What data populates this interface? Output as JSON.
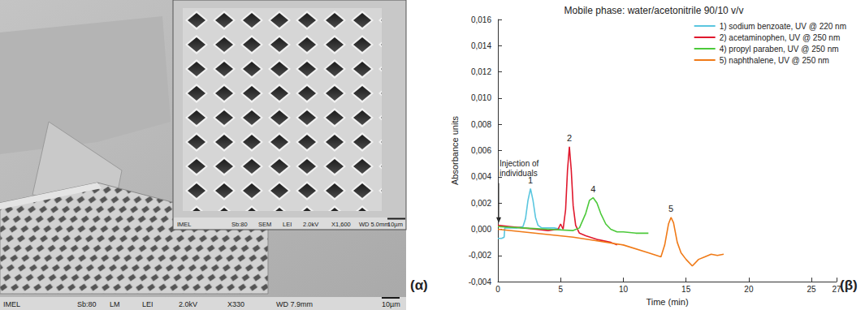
{
  "chart_data": {
    "type": "line",
    "title": "Mobile phase: water/acetonitrile 90/10 v/v",
    "x_label": "Time (min)",
    "y_label": "Absorbance units",
    "xlim": [
      0,
      27
    ],
    "xticks": [
      0,
      5,
      10,
      15,
      20,
      25
    ],
    "ylim": [
      -0.004,
      0.016
    ],
    "yticks": [
      {
        "value": -0.004,
        "label": "-0,004"
      },
      {
        "value": -0.002,
        "label": "-0,002"
      },
      {
        "value": 0,
        "label": "0,000"
      },
      {
        "value": 0.002,
        "label": "0,002"
      },
      {
        "value": 0.004,
        "label": "0,004"
      },
      {
        "value": 0.006,
        "label": "0,006"
      },
      {
        "value": 0.008,
        "label": "0,008"
      },
      {
        "value": 0.01,
        "label": "0,010"
      },
      {
        "value": 0.012,
        "label": "0,012"
      },
      {
        "value": 0.014,
        "label": "0,014"
      },
      {
        "value": 0.016,
        "label": "0,016"
      }
    ],
    "grid": false,
    "legend": "upper right",
    "series": [
      {
        "name": "1) sodium benzoate, UV @ 220 nm",
        "color": "#5ac6df",
        "x": [
          0,
          0.3,
          0.5,
          0.55,
          1,
          1.5,
          2.0,
          2.2,
          2.4,
          2.6,
          2.8,
          3.0,
          3.2,
          3.5,
          4,
          4.5,
          5
        ],
        "values": [
          -0.0007,
          -0.0007,
          -0.0006,
          0.0001,
          0.0001,
          0.0001,
          0.0002,
          0.0008,
          0.0022,
          0.0031,
          0.0022,
          0.0009,
          0.0003,
          0.0001,
          0.0001,
          0.0001,
          0.0
        ]
      },
      {
        "name": "2) acetaminophen, UV @ 250 nm",
        "color": "#e0182d",
        "x": [
          0,
          1,
          2,
          3,
          4,
          4.8,
          5.0,
          5.2,
          5.4,
          5.55,
          5.7,
          5.85,
          6.0,
          6.2,
          6.5,
          7,
          8,
          9,
          9.5
        ],
        "values": [
          0.0003,
          0.0002,
          0.0001,
          0.0,
          -0.0001,
          0.0,
          0.0004,
          0.0,
          0.0015,
          0.0045,
          0.0063,
          0.0045,
          0.0018,
          0.0003,
          -0.0003,
          -0.0005,
          -0.0008,
          -0.001,
          -0.0012
        ]
      },
      {
        "name": "4) propyl paraben, UV @ 250 nm",
        "color": "#4cc93a",
        "x": [
          0,
          2,
          4,
          6,
          6.5,
          7.0,
          7.3,
          7.6,
          7.9,
          8.2,
          8.6,
          9,
          9.5,
          10,
          11,
          12
        ],
        "values": [
          0.0002,
          0.0001,
          0.0,
          -0.0001,
          0.0001,
          0.0012,
          0.0022,
          0.0024,
          0.002,
          0.0012,
          0.0004,
          0.0,
          -0.0002,
          -0.0002,
          -0.0003,
          -0.0003
        ]
      },
      {
        "name": "5) naphthalene, UV @ 250 nm",
        "color": "#f07a17",
        "x": [
          0,
          2,
          4,
          6,
          8,
          10,
          12,
          13,
          13.3,
          13.6,
          13.8,
          14.0,
          14.3,
          14.6,
          15,
          15.5,
          16,
          16.5,
          17,
          17.5,
          18
        ],
        "values": [
          0.0,
          -0.0002,
          -0.0004,
          -0.0006,
          -0.0009,
          -0.0012,
          -0.0018,
          -0.0021,
          -0.0012,
          0.0004,
          0.0009,
          0.0005,
          -0.001,
          -0.0018,
          -0.0023,
          -0.0028,
          -0.0023,
          -0.0021,
          -0.0019,
          -0.002,
          -0.0019
        ]
      }
    ],
    "annotations": [
      {
        "text": "Injection of\nindividuals",
        "x": 0,
        "y": 0.0003,
        "arrow": true
      },
      {
        "text": "1",
        "x": 2.6,
        "y": 0.0031
      },
      {
        "text": "2",
        "x": 5.7,
        "y": 0.0063
      },
      {
        "text": "4",
        "x": 7.6,
        "y": 0.0024
      },
      {
        "text": "5",
        "x": 13.8,
        "y": 0.0009
      }
    ]
  },
  "micrograph": {
    "main_info": [
      "IMEL",
      "Sb:80",
      "LM",
      "LEI",
      "2.0kV",
      "X330",
      "WD 7.9mm",
      "10µm"
    ],
    "inset_info": [
      "IMEL",
      "Sb:80",
      "SEM",
      "LEI",
      "2.0kV",
      "X1,600",
      "WD 5.0mm",
      "10µm"
    ]
  },
  "panel_labels": [
    "(α)",
    "(β)"
  ]
}
